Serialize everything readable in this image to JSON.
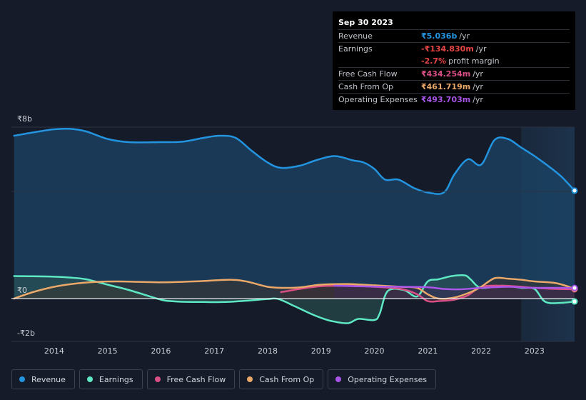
{
  "chart_data": {
    "type": "area",
    "title": "",
    "xlabel": "",
    "ylabel": "",
    "ylim": [
      -2,
      8
    ],
    "xlim": [
      2013.2,
      2023.75
    ],
    "y_tick_labels": [
      {
        "value": 8,
        "label": "₹8b"
      },
      {
        "value": 0,
        "label": "₹0"
      },
      {
        "value": -2,
        "label": "-₹2b"
      }
    ],
    "x_ticks": [
      2014,
      2015,
      2016,
      2017,
      2018,
      2019,
      2020,
      2021,
      2022,
      2023
    ],
    "x_tick_labels": [
      "2014",
      "2015",
      "2016",
      "2017",
      "2018",
      "2019",
      "2020",
      "2021",
      "2022",
      "2023"
    ],
    "forecast_start": 2022.75,
    "series": [
      {
        "name": "Revenue",
        "color": "#2394df",
        "fill": true,
        "fill_color": "#1b4466",
        "x": [
          2013.25,
          2013.6,
          2014.0,
          2014.3,
          2014.6,
          2015.0,
          2015.4,
          2016.0,
          2016.4,
          2016.8,
          2017.1,
          2017.4,
          2017.7,
          2018.0,
          2018.25,
          2018.6,
          2018.9,
          2019.25,
          2019.6,
          2019.8,
          2020.0,
          2020.2,
          2020.45,
          2020.75,
          2021.0,
          2021.3,
          2021.5,
          2021.75,
          2022.0,
          2022.25,
          2022.5,
          2022.75,
          2023.0,
          2023.25,
          2023.5,
          2023.75
        ],
        "values": [
          7.6,
          7.75,
          7.9,
          7.92,
          7.8,
          7.45,
          7.3,
          7.3,
          7.32,
          7.5,
          7.6,
          7.5,
          6.9,
          6.35,
          6.1,
          6.2,
          6.45,
          6.65,
          6.45,
          6.35,
          6.05,
          5.55,
          5.55,
          5.15,
          4.95,
          4.95,
          5.8,
          6.5,
          6.25,
          7.4,
          7.45,
          7.05,
          6.65,
          6.2,
          5.7,
          5.036
        ]
      },
      {
        "name": "Earnings",
        "color": "#5ee9c4",
        "fill": true,
        "fill_color": "#2b5a55",
        "x": [
          2013.25,
          2013.6,
          2014.0,
          2014.3,
          2014.6,
          2015.0,
          2015.4,
          2016.0,
          2016.2,
          2016.4,
          2016.8,
          2017.2,
          2017.6,
          2018.0,
          2018.2,
          2018.5,
          2018.8,
          2019.0,
          2019.2,
          2019.5,
          2019.7,
          2020.0,
          2020.1,
          2020.25,
          2020.55,
          2020.8,
          2021.0,
          2021.2,
          2021.45,
          2021.7,
          2021.8,
          2022.0,
          2022.4,
          2022.75,
          2023.0,
          2023.2,
          2023.5,
          2023.75
        ],
        "values": [
          1.05,
          1.04,
          1.02,
          0.98,
          0.9,
          0.65,
          0.4,
          -0.05,
          -0.12,
          -0.15,
          -0.16,
          -0.16,
          -0.1,
          -0.02,
          -0.02,
          -0.35,
          -0.7,
          -0.9,
          -1.05,
          -1.15,
          -0.95,
          -1.0,
          -0.7,
          0.35,
          0.4,
          0.1,
          0.8,
          0.9,
          1.05,
          1.08,
          0.9,
          0.5,
          0.6,
          0.5,
          0.45,
          -0.15,
          -0.2,
          -0.135
        ]
      },
      {
        "name": "Free Cash Flow",
        "color": "#d94f86",
        "fill": true,
        "fill_color": "#4a2030",
        "x": [
          2018.25,
          2018.6,
          2019.0,
          2019.5,
          2020.0,
          2020.5,
          2020.8,
          2021.0,
          2021.2,
          2021.5,
          2021.75,
          2022.0,
          2022.4,
          2022.75,
          2023.0,
          2023.4,
          2023.75
        ],
        "values": [
          0.3,
          0.45,
          0.58,
          0.6,
          0.55,
          0.45,
          0.2,
          -0.12,
          -0.12,
          -0.05,
          0.15,
          0.55,
          0.6,
          0.55,
          0.5,
          0.45,
          0.434
        ]
      },
      {
        "name": "Cash From Op",
        "color": "#eaa869",
        "fill": true,
        "fill_color": "#3d3430",
        "x": [
          2013.25,
          2013.6,
          2014.0,
          2014.4,
          2014.8,
          2015.2,
          2015.6,
          2016.0,
          2016.4,
          2016.8,
          2017.3,
          2017.6,
          2018.0,
          2018.3,
          2018.6,
          2019.0,
          2019.5,
          2020.0,
          2020.5,
          2020.8,
          2021.0,
          2021.2,
          2021.5,
          2021.8,
          2022.0,
          2022.25,
          2022.5,
          2022.75,
          2023.0,
          2023.4,
          2023.75
        ],
        "values": [
          0.0,
          0.3,
          0.55,
          0.7,
          0.78,
          0.8,
          0.78,
          0.76,
          0.78,
          0.82,
          0.88,
          0.8,
          0.55,
          0.5,
          0.52,
          0.65,
          0.68,
          0.62,
          0.55,
          0.5,
          0.2,
          0.0,
          0.05,
          0.3,
          0.55,
          0.95,
          0.93,
          0.88,
          0.8,
          0.72,
          0.462
        ]
      },
      {
        "name": "Operating Expenses",
        "color": "#a855e8",
        "fill": true,
        "fill_color": "#3a2a55",
        "x": [
          2019.25,
          2019.6,
          2020.0,
          2020.5,
          2021.0,
          2021.3,
          2021.6,
          2022.0,
          2022.5,
          2022.75,
          2023.0,
          2023.4,
          2023.75
        ],
        "values": [
          0.6,
          0.58,
          0.56,
          0.55,
          0.53,
          0.45,
          0.43,
          0.5,
          0.55,
          0.52,
          0.5,
          0.5,
          0.494
        ]
      }
    ],
    "legend": [
      "Revenue",
      "Earnings",
      "Free Cash Flow",
      "Cash From Op",
      "Operating Expenses"
    ]
  },
  "tooltip": {
    "date": "Sep 30 2023",
    "rows": [
      {
        "label": "Revenue",
        "value": "₹5.036b",
        "unit": "/yr",
        "color": "#2394df"
      },
      {
        "label": "Earnings",
        "value": "-₹134.830m",
        "unit": "/yr",
        "color": "#e84545"
      },
      {
        "label": "",
        "value": "-2.7%",
        "unit": "profit margin",
        "color": "#e84545"
      },
      {
        "label": "Free Cash Flow",
        "value": "₹434.254m",
        "unit": "/yr",
        "color": "#d94f86"
      },
      {
        "label": "Cash From Op",
        "value": "₹461.719m",
        "unit": "/yr",
        "color": "#eaa869"
      },
      {
        "label": "Operating Expenses",
        "value": "₹493.703m",
        "unit": "/yr",
        "color": "#a855e8"
      }
    ]
  },
  "legend_items": [
    {
      "label": "Revenue",
      "color": "#2394df"
    },
    {
      "label": "Earnings",
      "color": "#5ee9c4"
    },
    {
      "label": "Free Cash Flow",
      "color": "#d94f86"
    },
    {
      "label": "Cash From Op",
      "color": "#eaa869"
    },
    {
      "label": "Operating Expenses",
      "color": "#a855e8"
    }
  ]
}
